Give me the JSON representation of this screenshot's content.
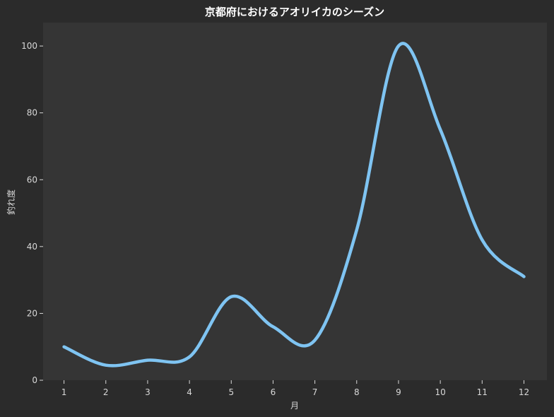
{
  "chart_data": {
    "type": "line",
    "title": "京都府におけるアオリイカのシーズン",
    "xlabel": "月",
    "ylabel": "釣れ度",
    "x": [
      1,
      2,
      3,
      4,
      5,
      6,
      7,
      8,
      9,
      10,
      11,
      12
    ],
    "xticks": [
      "1",
      "2",
      "3",
      "4",
      "5",
      "6",
      "7",
      "8",
      "9",
      "10",
      "11",
      "12"
    ],
    "y": [
      10,
      4.5,
      6,
      7,
      25,
      16,
      12,
      45,
      100,
      75,
      42,
      31
    ],
    "yticks": [
      0,
      20,
      40,
      60,
      80,
      100
    ],
    "xlim": [
      0.5,
      12.55
    ],
    "ylim": [
      0,
      107
    ],
    "grid": false,
    "colors": {
      "page_background": "#2b2b2b",
      "plot_background": "#353535",
      "line": "#7fc4f2",
      "text": "#d8d8d8",
      "title": "#ffffff"
    }
  }
}
